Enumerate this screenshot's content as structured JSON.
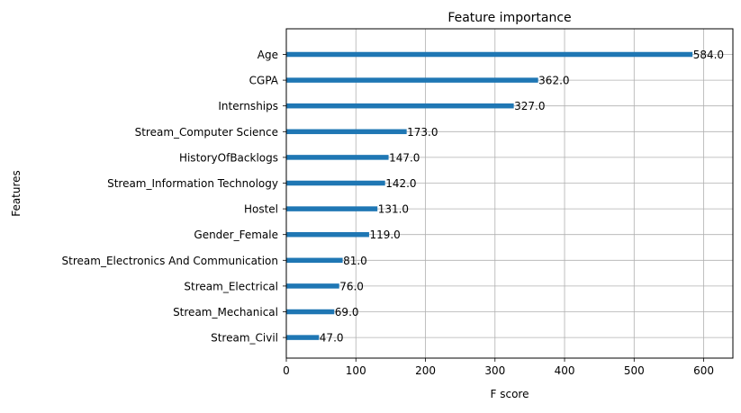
{
  "chart_data": {
    "type": "bar",
    "orientation": "horizontal",
    "title": "Feature importance",
    "xlabel": "F score",
    "ylabel": "Features",
    "xlim": [
      0,
      642
    ],
    "xticks": [
      0,
      100,
      200,
      300,
      400,
      500,
      600
    ],
    "grid": true,
    "bar_color": "#1f77b4",
    "categories": [
      "Age",
      "CGPA",
      "Internships",
      "Stream_Computer Science",
      "HistoryOfBacklogs",
      "Stream_Information Technology",
      "Hostel",
      "Gender_Female",
      "Stream_Electronics And Communication",
      "Stream_Electrical",
      "Stream_Mechanical",
      "Stream_Civil"
    ],
    "values": [
      584.0,
      362.0,
      327.0,
      173.0,
      147.0,
      142.0,
      131.0,
      119.0,
      81.0,
      76.0,
      69.0,
      47.0
    ],
    "data_labels": [
      "584.0",
      "362.0",
      "327.0",
      "173.0",
      "147.0",
      "142.0",
      "131.0",
      "119.0",
      "81.0",
      "76.0",
      "69.0",
      "47.0"
    ]
  }
}
